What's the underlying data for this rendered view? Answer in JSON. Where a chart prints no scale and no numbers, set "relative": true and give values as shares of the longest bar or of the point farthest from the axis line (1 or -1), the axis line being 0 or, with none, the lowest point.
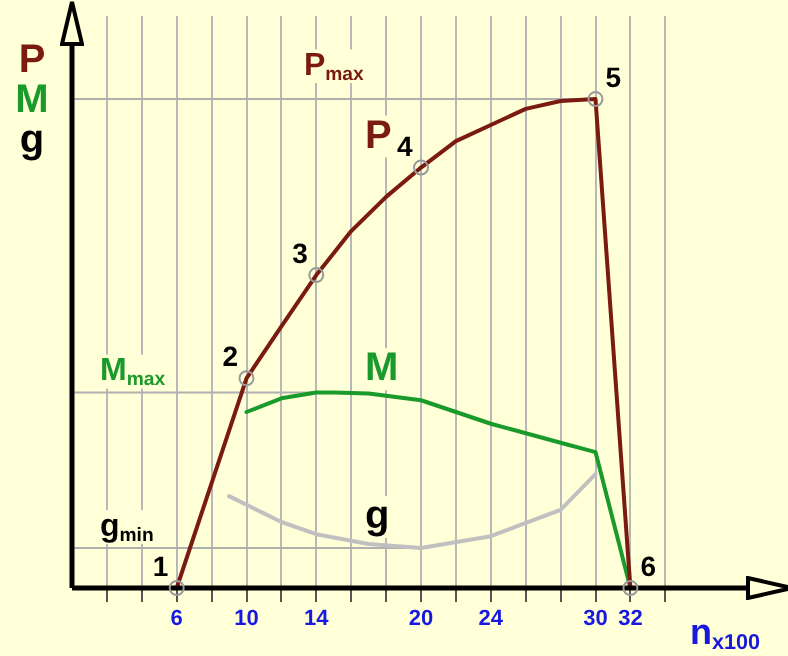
{
  "chart_data": {
    "type": "line",
    "relative": true,
    "xlabel": "n$_{x100}$",
    "ylabel": "P M g",
    "xlim": [
      0,
      40
    ],
    "xticks": [
      {
        "value": 2,
        "label": null
      },
      {
        "value": 4,
        "label": null
      },
      6,
      {
        "value": 8,
        "label": null
      },
      10,
      {
        "value": 12,
        "label": null
      },
      14,
      {
        "value": 16,
        "label": null
      },
      {
        "value": 18,
        "label": null
      },
      20,
      {
        "value": 22,
        "label": null
      },
      24,
      {
        "value": 26,
        "label": null
      },
      {
        "value": 28,
        "label": null
      },
      30,
      32,
      {
        "value": 34,
        "label": null
      }
    ],
    "grid": "x",
    "legend": false,
    "marker": "none",
    "line_style": "solid",
    "series": [
      {
        "name": "P",
        "color": "#7a1a10",
        "x": [
          6,
          10,
          12,
          14,
          16,
          18,
          20,
          22,
          24,
          26,
          28,
          30,
          32
        ],
        "values": [
          0,
          0.429,
          0.535,
          0.64,
          0.73,
          0.8,
          0.86,
          0.914,
          0.947,
          0.98,
          0.996,
          1,
          0
        ]
      },
      {
        "name": "M",
        "color": "#1a9a2a",
        "x": [
          10,
          12,
          14,
          15,
          17,
          20,
          24,
          28,
          30,
          32
        ],
        "values": [
          0.36,
          0.388,
          0.4,
          0.4,
          0.398,
          0.384,
          0.336,
          0.297,
          0.278,
          0
        ]
      },
      {
        "name": "g",
        "color": "#c0c0c0",
        "x": [
          9,
          12,
          14,
          17,
          20,
          24,
          28,
          30
        ],
        "values": [
          0.188,
          0.135,
          0.11,
          0.09,
          0.082,
          0.106,
          0.16,
          0.233
        ]
      }
    ],
    "ref_lines": [
      {
        "axis": "y",
        "value": 1,
        "label": "P$_{max}$",
        "color": "#b0b0b0"
      },
      {
        "axis": "y",
        "value": 0.4,
        "label": "M$_{max}$",
        "color": "#b0b0b0"
      },
      {
        "axis": "y",
        "value": 0.082,
        "label": "g$_{min}$",
        "color": "#b0b0b0"
      }
    ],
    "annotations": [
      {
        "text": "1",
        "x": 6,
        "y": 0
      },
      {
        "text": "2",
        "x": 10,
        "y": 0.429
      },
      {
        "text": "3",
        "x": 14,
        "y": 0.64
      },
      {
        "text": "4",
        "x": 20,
        "y": 0.86
      },
      {
        "text": "5",
        "x": 30,
        "y": 1
      },
      {
        "text": "6",
        "x": 32,
        "y": 0
      }
    ]
  }
}
